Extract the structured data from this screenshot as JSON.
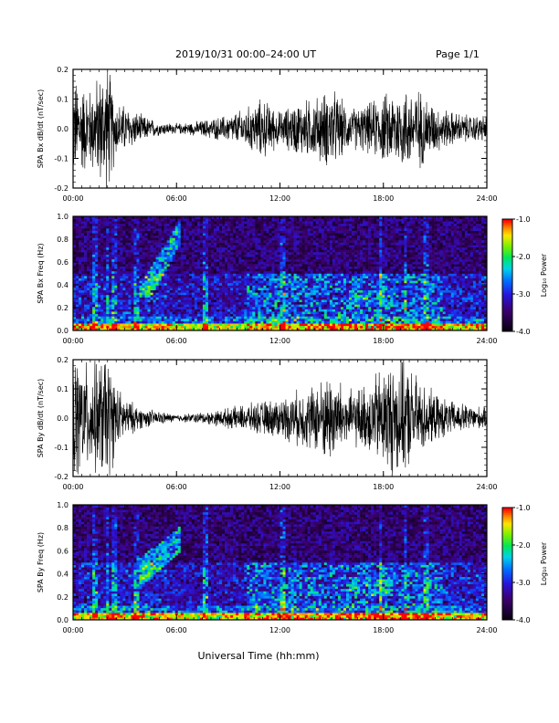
{
  "header": {
    "title": "2019/10/31   00:00–24:00 UT",
    "page": "Page 1/1"
  },
  "xaxis_label": "Universal Time (hh:mm)",
  "colorbar": {
    "label": "Log₁₀ Power",
    "ticks": [
      "-1.0",
      "-2.0",
      "-3.0",
      "-4.0"
    ],
    "range": [
      -4.0,
      -1.0
    ]
  },
  "chart_data": [
    {
      "type": "line",
      "ylabel": "SPA Bx dB/dt (nT/sec)",
      "xlim": [
        0,
        24
      ],
      "ylim": [
        -0.2,
        0.2
      ],
      "xticks": [
        "00:00",
        "06:00",
        "12:00",
        "18:00",
        "24:00"
      ],
      "yticks": [
        "0.2",
        "0.1",
        "0.0",
        "-0.1",
        "-0.2"
      ],
      "envelope": {
        "hours": [
          0,
          1,
          2,
          2.5,
          3,
          4,
          5,
          6,
          7,
          8,
          9,
          10,
          11,
          12,
          13,
          14,
          15,
          16,
          17,
          18,
          19,
          20,
          21,
          22,
          23,
          24
        ],
        "amplitude": [
          0.15,
          0.12,
          0.2,
          0.08,
          0.07,
          0.04,
          0.02,
          0.015,
          0.02,
          0.03,
          0.04,
          0.06,
          0.09,
          0.05,
          0.08,
          0.09,
          0.12,
          0.06,
          0.07,
          0.1,
          0.12,
          0.12,
          0.07,
          0.05,
          0.04,
          0.04
        ]
      }
    },
    {
      "type": "heatmap",
      "ylabel": "SPA Bx Freq (Hz)",
      "xlim": [
        0,
        24
      ],
      "ylim": [
        0.0,
        1.0
      ],
      "xticks": [
        "00:00",
        "06:00",
        "12:00",
        "18:00",
        "24:00"
      ],
      "yticks": [
        "1.0",
        "0.8",
        "0.6",
        "0.4",
        "0.2",
        "0.0"
      ]
    },
    {
      "type": "line",
      "ylabel": "SPA By dB/dt (nT/sec)",
      "xlim": [
        0,
        24
      ],
      "ylim": [
        -0.2,
        0.2
      ],
      "xticks": [
        "00:00",
        "06:00",
        "12:00",
        "18:00",
        "24:00"
      ],
      "yticks": [
        "0.2",
        "0.1",
        "0.0",
        "-0.1",
        "-0.2"
      ],
      "envelope": {
        "hours": [
          0,
          1,
          2,
          2.5,
          3,
          4,
          5,
          6,
          7,
          8,
          9,
          10,
          11,
          12,
          13,
          14,
          15,
          16,
          17,
          18,
          19,
          20,
          21,
          22,
          23,
          24
        ],
        "amplitude": [
          0.2,
          0.15,
          0.2,
          0.1,
          0.06,
          0.03,
          0.02,
          0.01,
          0.015,
          0.02,
          0.03,
          0.04,
          0.05,
          0.06,
          0.08,
          0.1,
          0.14,
          0.08,
          0.1,
          0.16,
          0.18,
          0.12,
          0.07,
          0.05,
          0.04,
          0.03
        ]
      }
    },
    {
      "type": "heatmap",
      "ylabel": "SPA By Freq (Hz)",
      "xlim": [
        0,
        24
      ],
      "ylim": [
        0.0,
        1.0
      ],
      "xticks": [
        "00:00",
        "06:00",
        "12:00",
        "18:00",
        "24:00"
      ],
      "yticks": [
        "1.0",
        "0.8",
        "0.6",
        "0.4",
        "0.2",
        "0.0"
      ]
    }
  ]
}
